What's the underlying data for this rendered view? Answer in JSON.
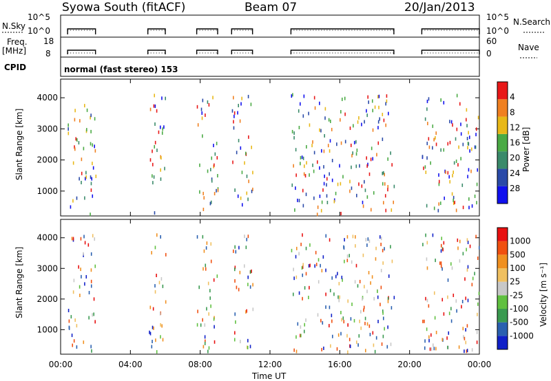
{
  "header": {
    "station": "Syowa South (fitACF)",
    "beam": "Beam 07",
    "date": "20/Jan/2013"
  },
  "strip_labels": {
    "nsky": "N.Sky",
    "nsearch": "N.Search",
    "freq": "Freq.",
    "freq_unit": "[MHz]",
    "nave": "Nave",
    "cpid": "CPID",
    "cpid_value": "normal (fast stereo) 153",
    "nsky_ticks": [
      "10^5",
      "10^0"
    ],
    "nsearch_ticks": [
      "10^5",
      "10^0"
    ],
    "freq_ticks": [
      "18",
      "8"
    ],
    "nave_ticks": [
      "60",
      "0"
    ]
  },
  "chart_data": [
    {
      "type": "scatter",
      "name": "power",
      "ylabel": "Slant Range [km]",
      "xlabel": "Time UT",
      "ylim": [
        200,
        4600
      ],
      "yticks": [
        "1000",
        "2000",
        "3000",
        "4000"
      ],
      "xticks": [
        "00:00",
        "04:00",
        "08:00",
        "12:00",
        "16:00",
        "20:00",
        "00:00"
      ],
      "colorbar": {
        "label": "Power [dB]",
        "ticks": [
          "4",
          "8",
          "12",
          "16",
          "20",
          "24",
          "28"
        ],
        "colors": [
          "#1010ee",
          "#2a4aa8",
          "#3a8a6a",
          "#4aaa44",
          "#e8b818",
          "#f08020",
          "#e81818"
        ]
      }
    },
    {
      "type": "scatter",
      "name": "velocity",
      "ylabel": "Slant Range [km]",
      "xlabel": "Time UT",
      "ylim": [
        200,
        4600
      ],
      "yticks": [
        "1000",
        "2000",
        "3000",
        "4000"
      ],
      "xticks": [
        "00:00",
        "04:00",
        "08:00",
        "12:00",
        "16:00",
        "20:00",
        "00:00"
      ],
      "colorbar": {
        "label": "Velocity [m s⁻¹]",
        "ticks": [
          "1000",
          "500",
          "100",
          "25",
          "-25",
          "-100",
          "-500",
          "-1000"
        ],
        "colors": [
          "#1020c8",
          "#2a60b0",
          "#3a9a50",
          "#60c040",
          "#c8c8c8",
          "#f0c060",
          "#f09020",
          "#f05010",
          "#e81010"
        ]
      }
    }
  ],
  "observation_intervals_hours": [
    [
      0.4,
      2.0
    ],
    [
      5.0,
      6.0
    ],
    [
      7.8,
      9.0
    ],
    [
      9.8,
      11.0
    ],
    [
      13.2,
      19.1
    ],
    [
      20.7,
      24.0
    ]
  ],
  "colors": {
    "axis": "#000000",
    "background": "#ffffff"
  }
}
